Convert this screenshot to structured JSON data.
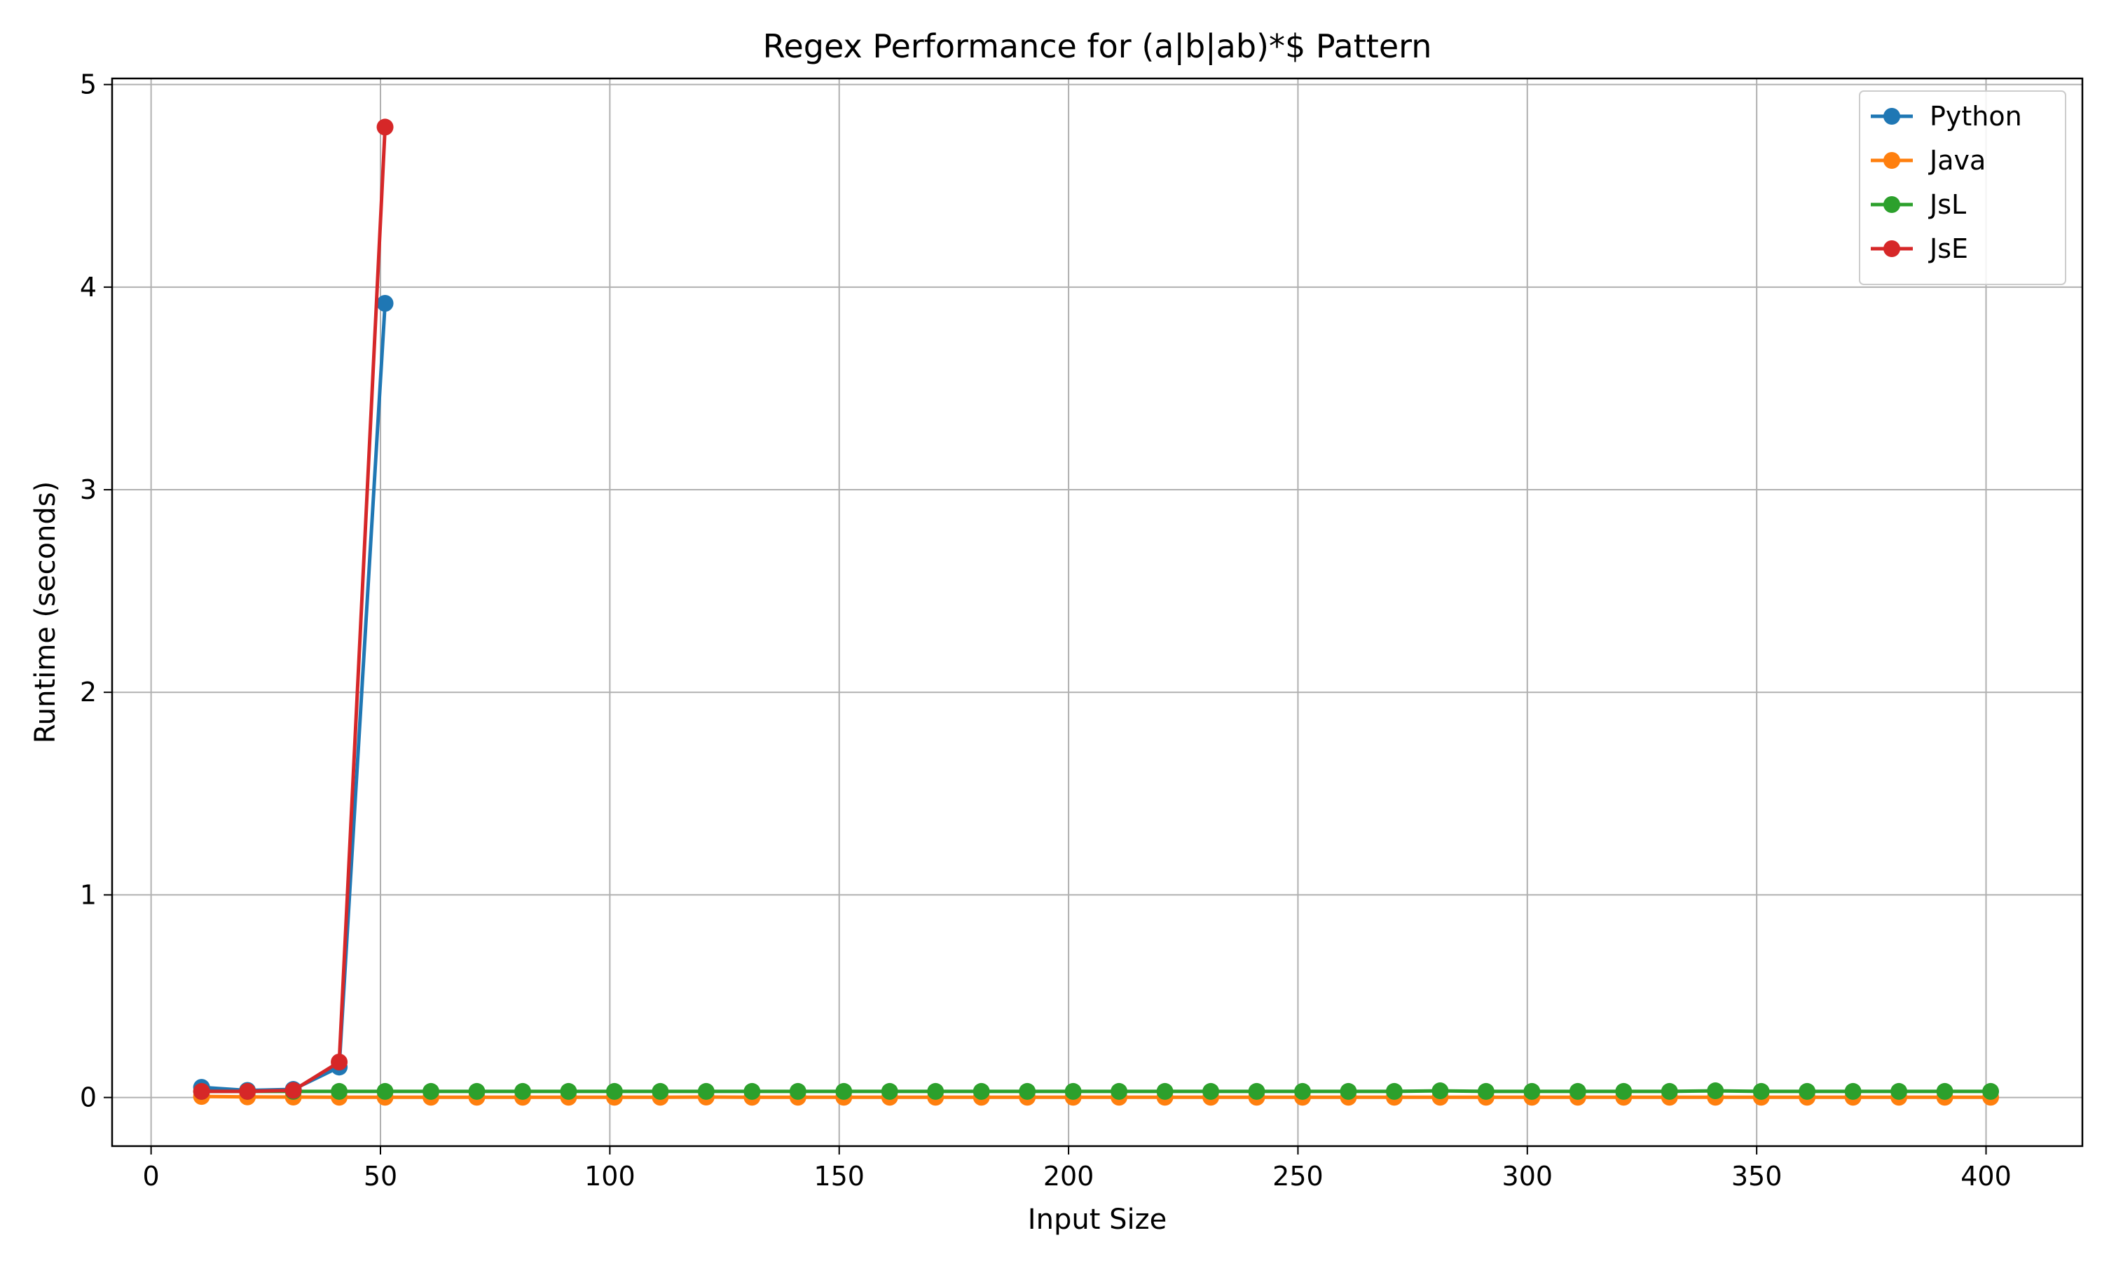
{
  "chart_data": {
    "type": "line",
    "title": "Regex Performance for (a|b|ab)*$ Pattern",
    "xlabel": "Input Size",
    "ylabel": "Runtime (seconds)",
    "xlim": [
      -8.5,
      421
    ],
    "ylim": [
      -0.24,
      5.03
    ],
    "xticks": [
      0,
      50,
      100,
      150,
      200,
      250,
      300,
      350,
      400
    ],
    "yticks": [
      0,
      1,
      2,
      3,
      4,
      5
    ],
    "grid": true,
    "legend_position": "top-right",
    "series": [
      {
        "name": "Python",
        "color": "#1f77b4",
        "x": [
          11,
          21,
          31,
          41,
          51
        ],
        "y": [
          0.05,
          0.035,
          0.04,
          0.15,
          3.92
        ]
      },
      {
        "name": "Java",
        "color": "#ff7f0e",
        "x": [
          11,
          21,
          31,
          41,
          51,
          61,
          71,
          81,
          91,
          101,
          111,
          121,
          131,
          141,
          151,
          161,
          171,
          181,
          191,
          201,
          211,
          221,
          231,
          241,
          251,
          261,
          271,
          281,
          291,
          301,
          311,
          321,
          331,
          341,
          351,
          361,
          371,
          381,
          391,
          401
        ],
        "y": [
          0.005,
          0.003,
          0.002,
          0.001,
          0.001,
          0.001,
          0.001,
          0.001,
          0.001,
          0.001,
          0.001,
          0.002,
          0.001,
          0.001,
          0.001,
          0.001,
          0.001,
          0.001,
          0.001,
          0.001,
          0.001,
          0.001,
          0.001,
          0.001,
          0.001,
          0.001,
          0.001,
          0.001,
          0.001,
          0.001,
          0.001,
          0.001,
          0.001,
          0.001,
          0.001,
          0.001,
          0.001,
          0.001,
          0.001,
          0.001
        ]
      },
      {
        "name": "JsL",
        "color": "#2ca02c",
        "x": [
          11,
          21,
          31,
          41,
          51,
          61,
          71,
          81,
          91,
          101,
          111,
          121,
          131,
          141,
          151,
          161,
          171,
          181,
          191,
          201,
          211,
          221,
          231,
          241,
          251,
          261,
          271,
          281,
          291,
          301,
          311,
          321,
          331,
          341,
          351,
          361,
          371,
          381,
          391,
          401
        ],
        "y": [
          0.03,
          0.03,
          0.03,
          0.03,
          0.03,
          0.03,
          0.03,
          0.03,
          0.03,
          0.03,
          0.03,
          0.03,
          0.03,
          0.03,
          0.03,
          0.03,
          0.03,
          0.03,
          0.03,
          0.03,
          0.03,
          0.03,
          0.03,
          0.03,
          0.03,
          0.03,
          0.03,
          0.033,
          0.03,
          0.03,
          0.03,
          0.03,
          0.03,
          0.033,
          0.03,
          0.03,
          0.03,
          0.03,
          0.03,
          0.03
        ]
      },
      {
        "name": "JsE",
        "color": "#d62728",
        "x": [
          11,
          21,
          31,
          41,
          51
        ],
        "y": [
          0.03,
          0.03,
          0.035,
          0.175,
          4.79
        ]
      }
    ]
  }
}
